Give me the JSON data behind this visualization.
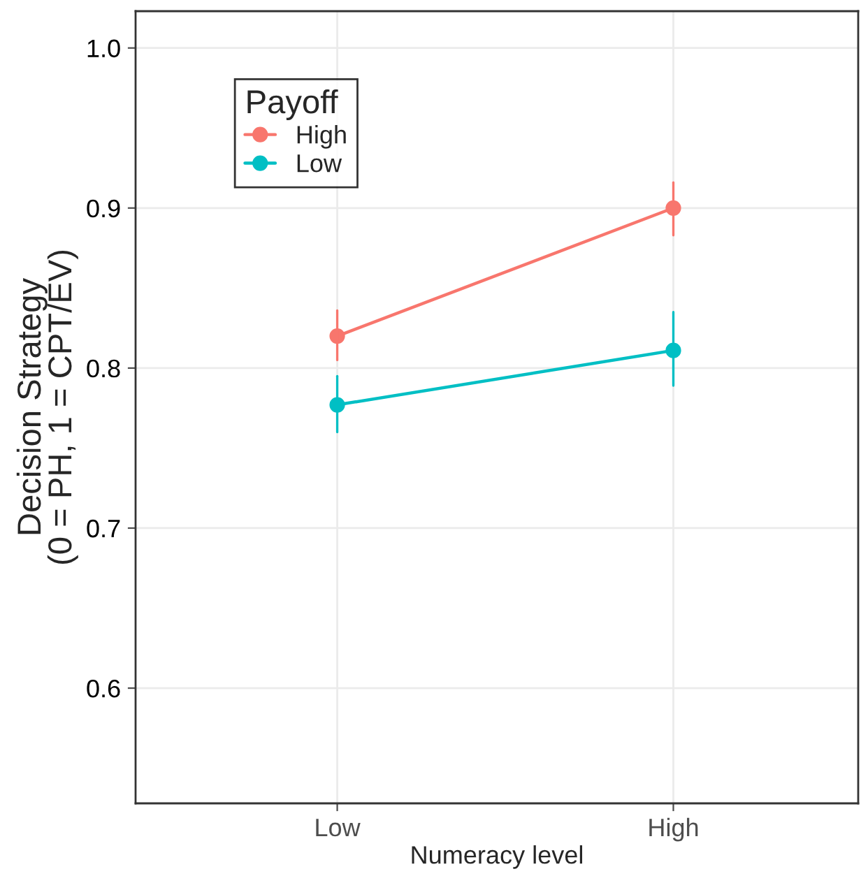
{
  "chart_data": {
    "type": "line",
    "xlabel": "Numeracy level",
    "ylabel": "Decision Strategy\n(0 = PH, 1 = CPT/EV)",
    "legend_title": "Payoff",
    "categories": [
      "Low",
      "High"
    ],
    "series": [
      {
        "name": "High",
        "color": "#f8766d",
        "values": [
          0.82,
          0.9
        ],
        "errors": [
          [
            0.805,
            0.836
          ],
          [
            0.883,
            0.916
          ]
        ]
      },
      {
        "name": "Low",
        "color": "#00bfc4",
        "values": [
          0.777,
          0.811
        ],
        "errors": [
          [
            0.76,
            0.795
          ],
          [
            0.789,
            0.835
          ]
        ]
      }
    ],
    "ylim": [
      0.528,
      1.023
    ],
    "yticks": [
      {
        "value": 0.6,
        "label": "0.6"
      },
      {
        "value": 0.7,
        "label": "0.7"
      },
      {
        "value": 0.8,
        "label": "0.8"
      },
      {
        "value": 0.9,
        "label": "0.9"
      },
      {
        "value": 1.0,
        "label": "1.0"
      }
    ],
    "grid": true,
    "legend": "top left",
    "marker": "circle",
    "line_style": "solid"
  }
}
